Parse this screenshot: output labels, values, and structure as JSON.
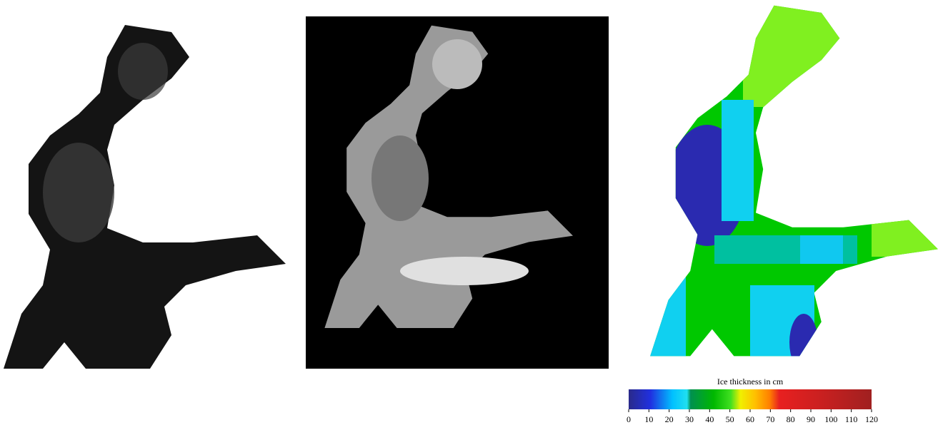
{
  "colorbar": {
    "label": "Ice thickness in cm",
    "lim": [
      0,
      120
    ],
    "ticks": [
      0,
      10,
      20,
      30,
      40,
      50,
      60,
      70,
      80,
      90,
      100,
      110,
      120
    ]
  }
}
